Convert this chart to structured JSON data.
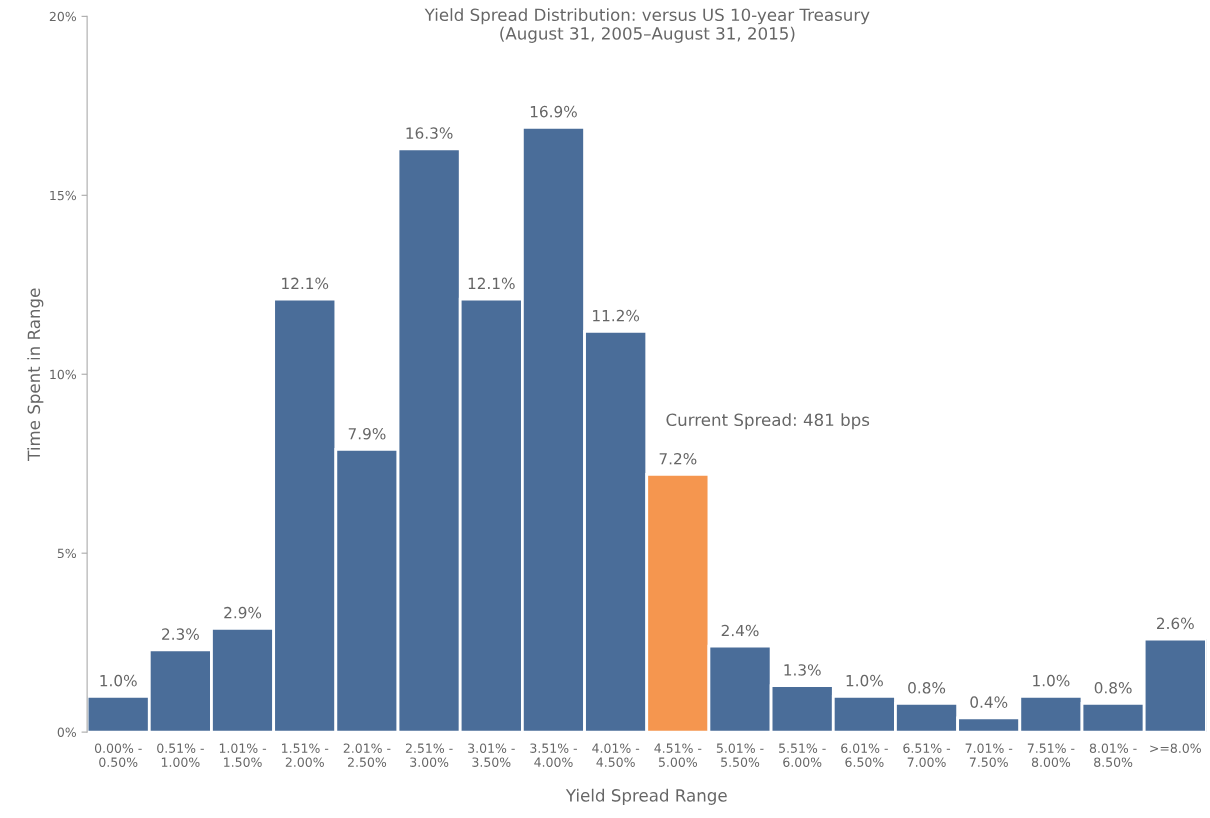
{
  "chart_data": {
    "type": "bar",
    "title": "Yield Spread Distribution: versus US 10-year Treasury\n(August 31, 2005–August 31, 2015)",
    "xlabel": "Yield Spread Range",
    "ylabel": "Time Spent in Range",
    "categories": [
      "0.00% -\n0.50%",
      "0.51% -\n1.00%",
      "1.01% -\n1.50%",
      "1.51% -\n2.00%",
      "2.01% -\n2.50%",
      "2.51% -\n3.00%",
      "3.01% -\n3.50%",
      "3.51% -\n4.00%",
      "4.01% -\n4.50%",
      "4.51% -\n5.00%",
      "5.01% -\n5.50%",
      "5.51% -\n6.00%",
      "6.01% -\n6.50%",
      "6.51% -\n7.00%",
      "7.01% -\n7.50%",
      "7.51% -\n8.00%",
      "8.01% -\n8.50%",
      ">=8.0%"
    ],
    "values": [
      1.0,
      2.3,
      2.9,
      12.1,
      7.9,
      16.3,
      12.1,
      16.9,
      11.2,
      7.2,
      2.4,
      1.3,
      1.0,
      0.8,
      0.4,
      1.0,
      0.8,
      2.6
    ],
    "value_labels": [
      "1.0%",
      "2.3%",
      "2.9%",
      "12.1%",
      "7.9%",
      "16.3%",
      "12.1%",
      "16.9%",
      "11.2%",
      "7.2%",
      "2.4%",
      "1.3%",
      "1.0%",
      "0.8%",
      "0.4%",
      "1.0%",
      "0.8%",
      "2.6%"
    ],
    "colors": [
      "#4a6d99",
      "#4a6d99",
      "#4a6d99",
      "#4a6d99",
      "#4a6d99",
      "#4a6d99",
      "#4a6d99",
      "#4a6d99",
      "#4a6d99",
      "#f5964f",
      "#4a6d99",
      "#4a6d99",
      "#4a6d99",
      "#4a6d99",
      "#4a6d99",
      "#4a6d99",
      "#4a6d99",
      "#4a6d99"
    ],
    "annotations": [
      "Current Spread: 481 bps"
    ],
    "ylim": [
      0,
      20
    ],
    "yticks": [
      {
        "value": 0,
        "label": "0%"
      },
      {
        "value": 5,
        "label": "5%"
      },
      {
        "value": 10,
        "label": "10%"
      },
      {
        "value": 15,
        "label": "15%"
      },
      {
        "value": 20,
        "label": "20%"
      }
    ],
    "grid": false,
    "legend": false
  }
}
